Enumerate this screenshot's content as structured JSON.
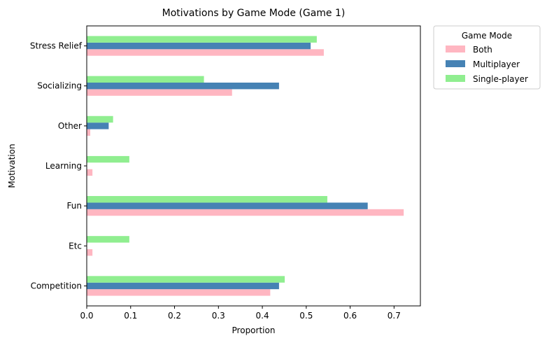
{
  "chart_data": {
    "type": "bar",
    "orientation": "horizontal",
    "title": "Motivations by Game Mode (Game 1)",
    "xlabel": "Proportion",
    "ylabel": "Motivation",
    "categories": [
      "Competition",
      "Etc",
      "Fun",
      "Learning",
      "Other",
      "Socializing",
      "Stress Relief"
    ],
    "series": [
      {
        "name": "Both",
        "color": "#ffb6c1",
        "values": [
          0.418,
          0.013,
          0.722,
          0.013,
          0.008,
          0.331,
          0.54
        ]
      },
      {
        "name": "Multiplayer",
        "color": "#4682b4",
        "values": [
          0.438,
          0.0,
          0.64,
          0.0,
          0.05,
          0.438,
          0.51
        ]
      },
      {
        "name": "Single-player",
        "color": "#90ee90",
        "values": [
          0.451,
          0.097,
          0.548,
          0.097,
          0.06,
          0.267,
          0.524
        ]
      }
    ],
    "xlim": [
      0,
      0.76
    ],
    "xticks": [
      "0.0",
      "0.1",
      "0.2",
      "0.3",
      "0.4",
      "0.5",
      "0.6",
      "0.7"
    ],
    "grid": false,
    "legend": {
      "title": "Game Mode",
      "placement": "outside-top-right"
    }
  }
}
